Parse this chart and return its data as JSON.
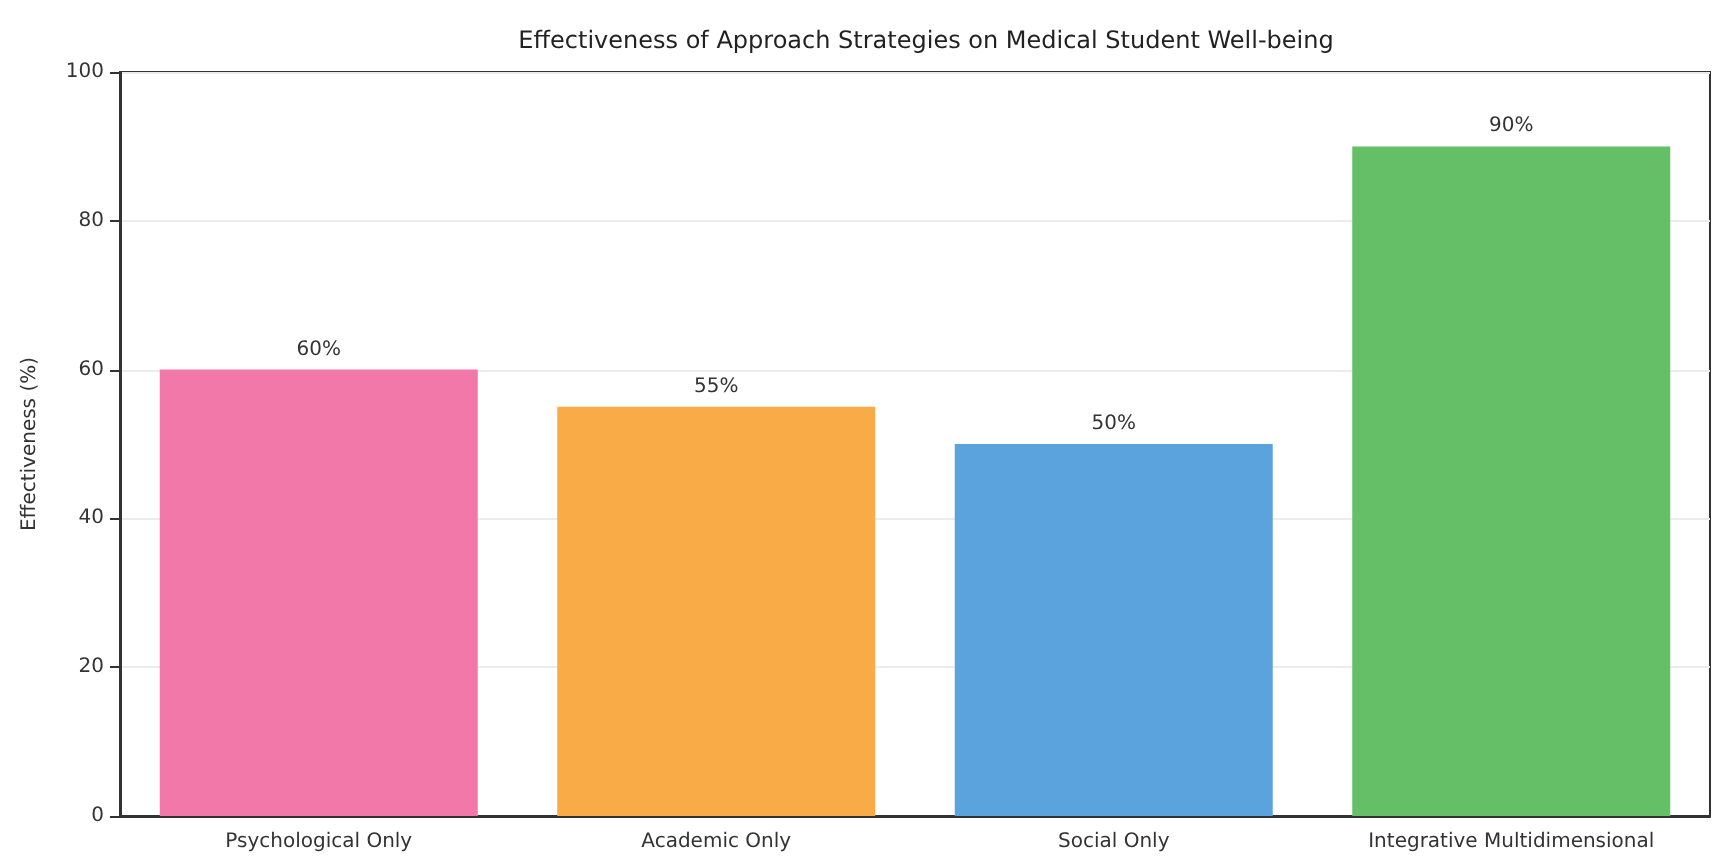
{
  "chart_data": {
    "type": "bar",
    "title": "Effectiveness of Approach Strategies on Medical Student Well-being",
    "ylabel": "Effectiveness (%)",
    "categories": [
      "Psychological Only",
      "Academic Only",
      "Social Only",
      "Integrative Multidimensional"
    ],
    "values": [
      60,
      55,
      50,
      90
    ],
    "colors": [
      "#f178a9",
      "#f9ab47",
      "#5ba3dc",
      "#64bf67"
    ],
    "value_labels": [
      "60%",
      "55%",
      "50%",
      "90%"
    ],
    "ylim": [
      0,
      100
    ],
    "yticks": [
      0,
      20,
      40,
      60,
      80,
      100
    ],
    "grid": "y"
  }
}
